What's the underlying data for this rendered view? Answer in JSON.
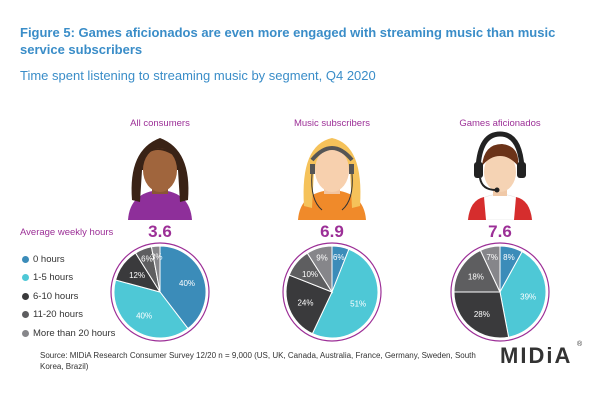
{
  "title": "Figure 5: Games aficionados are even more engaged with streaming music than music service subscribers",
  "subtitle": "Time spent listening to streaming music by segment, Q4 2020",
  "avg_label": "Average weekly hours",
  "source": "Source: MIDiA Research Consumer Survey 12/20 n = 9,000 (US, UK, Canada, Australia, France, Germany, Sweden, South Korea, Brazil)",
  "logo": {
    "text": "MIDiA",
    "mark": "®"
  },
  "colors": {
    "0 hours": "#3b8cb9",
    "1-5 hours": "#4ec8d6",
    "6-10 hours": "#3a3a3c",
    "11-20 hours": "#5e5e60",
    "More than 20 hours": "#86868a",
    "ring": "#9c2f97",
    "label_light": "#ffffff"
  },
  "chart_data": {
    "type": "pie",
    "legend": [
      "0 hours",
      "1-5 hours",
      "6-10 hours",
      "11-20 hours",
      "More than 20 hours"
    ],
    "series": [
      {
        "name": "All consumers",
        "avg_weekly_hours": "3.6",
        "values": [
          40,
          40,
          12,
          6,
          3
        ],
        "labels": [
          "40%",
          "40%",
          "12%",
          "6%",
          "3%"
        ]
      },
      {
        "name": "Music subscribers",
        "avg_weekly_hours": "6.9",
        "values": [
          6,
          51,
          24,
          10,
          9
        ],
        "labels": [
          "6%",
          "51%",
          "24%",
          "10%",
          "9%"
        ]
      },
      {
        "name": "Games aficionados",
        "avg_weekly_hours": "7.6",
        "values": [
          8,
          39,
          28,
          18,
          7
        ],
        "labels": [
          "8%",
          "39%",
          "28%",
          "18%",
          "7%"
        ]
      }
    ]
  }
}
